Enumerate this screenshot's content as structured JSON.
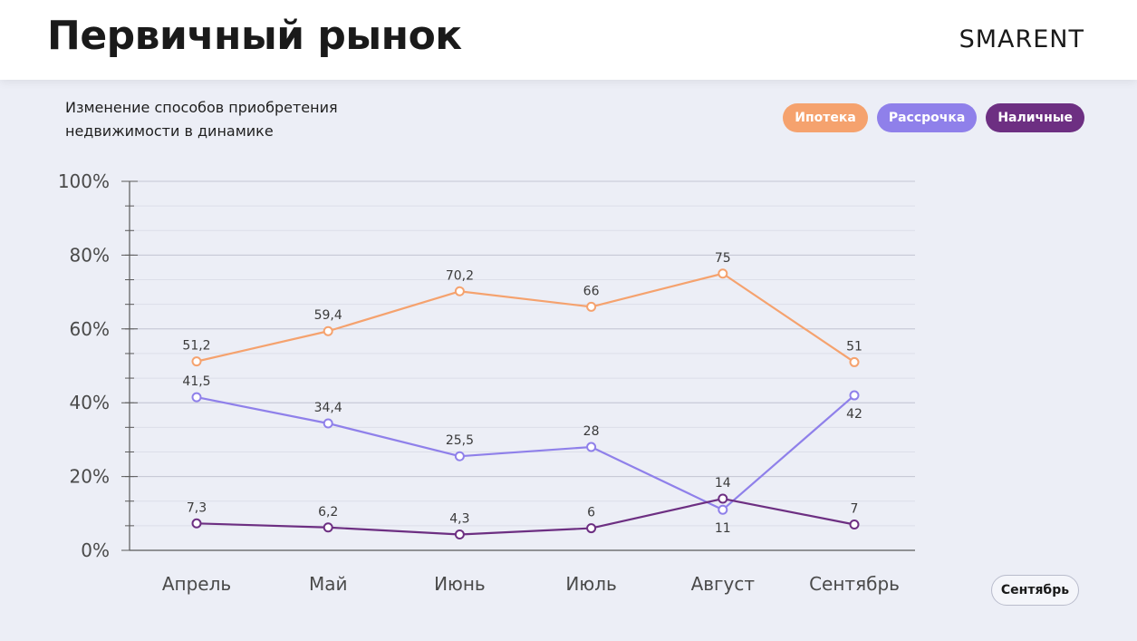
{
  "header": {
    "title": "Первичный рынок",
    "brand": "SMARENT"
  },
  "subtitle": {
    "line1": "Изменение способов приобретения",
    "line2": "недвижимости в динамике"
  },
  "legend": [
    {
      "label": "Ипотека",
      "color": "#f5a26e"
    },
    {
      "label": "Рассрочка",
      "color": "#8f80ea"
    },
    {
      "label": "Наличные",
      "color": "#6d2f82"
    }
  ],
  "month_button": "Сентябрь",
  "chart_data": {
    "type": "line",
    "categories": [
      "Апрель",
      "Май",
      "Июнь",
      "Июль",
      "Август",
      "Сентябрь"
    ],
    "ylim": [
      0,
      100
    ],
    "yticks": [
      {
        "value": 0,
        "label": "0%"
      },
      {
        "value": 20,
        "label": "20%"
      },
      {
        "value": 40,
        "label": "40%"
      },
      {
        "value": 60,
        "label": "60%"
      },
      {
        "value": 80,
        "label": "80%"
      },
      {
        "value": 100,
        "label": "100%"
      }
    ],
    "grid": true,
    "series": [
      {
        "name": "Ипотека",
        "color": "#f5a26e",
        "values": [
          51.2,
          59.4,
          70.2,
          66,
          75,
          51
        ],
        "labels": [
          "51,2",
          "59,4",
          "70,2",
          "66",
          "75",
          "51"
        ],
        "label_pos": [
          "above",
          "above",
          "above",
          "above",
          "above",
          "above"
        ]
      },
      {
        "name": "Рассрочка",
        "color": "#8f80ea",
        "values": [
          41.5,
          34.4,
          25.5,
          28,
          11,
          42
        ],
        "labels": [
          "41,5",
          "34,4",
          "25,5",
          "28",
          "11",
          "42"
        ],
        "label_pos": [
          "above",
          "above",
          "above",
          "above",
          "below",
          "below"
        ]
      },
      {
        "name": "Наличные",
        "color": "#6d2f82",
        "values": [
          7.3,
          6.2,
          4.3,
          6,
          14,
          7
        ],
        "labels": [
          "7,3",
          "6,2",
          "4,3",
          "6",
          "14",
          "7"
        ],
        "label_pos": [
          "above",
          "above",
          "above",
          "above",
          "above",
          "above"
        ]
      }
    ]
  }
}
